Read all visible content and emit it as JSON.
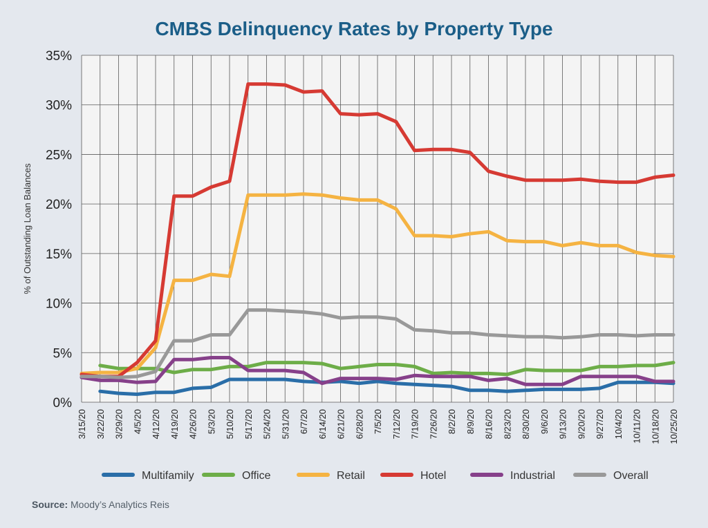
{
  "chart_data": {
    "type": "line",
    "title": "CMBS Delinquency Rates by Property Type",
    "ylabel": "% of Outstanding Loan Balances",
    "xlabel": "",
    "ylim": [
      0,
      35
    ],
    "yticks": [
      "0%",
      "5%",
      "10%",
      "15%",
      "20%",
      "25%",
      "30%",
      "35%"
    ],
    "categories": [
      "3/15/20",
      "3/22/20",
      "3/29/20",
      "4/5/20",
      "4/12/20",
      "4/19/20",
      "4/26/20",
      "5/3/20",
      "5/10/20",
      "5/17/20",
      "5/24/20",
      "5/31/20",
      "6/7/20",
      "6/14/20",
      "6/21/20",
      "6/28/20",
      "7/5/20",
      "7/12/20",
      "7/19/20",
      "7/26/20",
      "8/2/20",
      "8/9/20",
      "8/16/20",
      "8/23/20",
      "8/30/20",
      "9/6/20",
      "9/13/20",
      "9/20/20",
      "9/27/20",
      "10/4/20",
      "10/11/20",
      "10/18/20",
      "10/25/20"
    ],
    "grid": true,
    "legend_position": "bottom",
    "series": [
      {
        "name": "Multifamily",
        "color": "#2a6ea8",
        "values": [
          null,
          1.1,
          0.9,
          0.8,
          1.0,
          1.0,
          1.4,
          1.5,
          2.3,
          2.3,
          2.3,
          2.3,
          2.1,
          2.0,
          2.1,
          1.9,
          2.1,
          1.9,
          1.8,
          1.7,
          1.6,
          1.2,
          1.2,
          1.1,
          1.2,
          1.3,
          1.3,
          1.3,
          1.4,
          2.0,
          2.0,
          2.0,
          1.9
        ]
      },
      {
        "name": "Office",
        "color": "#6dad48",
        "values": [
          null,
          3.7,
          3.4,
          3.4,
          3.4,
          3.0,
          3.3,
          3.3,
          3.6,
          3.6,
          4.0,
          4.0,
          4.0,
          3.9,
          3.4,
          3.6,
          3.8,
          3.8,
          3.6,
          2.9,
          3.0,
          2.9,
          2.9,
          2.8,
          3.3,
          3.2,
          3.2,
          3.2,
          3.6,
          3.6,
          3.7,
          3.7,
          4.0
        ]
      },
      {
        "name": "Retail",
        "color": "#f5b342",
        "values": [
          2.9,
          3.0,
          3.0,
          3.4,
          5.5,
          12.3,
          12.3,
          12.9,
          12.7,
          20.9,
          20.9,
          20.9,
          21.0,
          20.9,
          20.6,
          20.4,
          20.4,
          19.5,
          16.8,
          16.8,
          16.7,
          17.0,
          17.2,
          16.3,
          16.2,
          16.2,
          15.8,
          16.1,
          15.8,
          15.8,
          15.1,
          14.8,
          14.7
        ]
      },
      {
        "name": "Hotel",
        "color": "#d63a33",
        "values": [
          2.8,
          2.6,
          2.6,
          4.0,
          6.2,
          20.8,
          20.8,
          21.7,
          22.3,
          32.1,
          32.1,
          32.0,
          31.3,
          31.4,
          29.1,
          29.0,
          29.1,
          28.3,
          25.4,
          25.5,
          25.5,
          25.2,
          23.3,
          22.8,
          22.4,
          22.4,
          22.4,
          22.5,
          22.3,
          22.2,
          22.2,
          22.7,
          22.9
        ]
      },
      {
        "name": "Industrial",
        "color": "#86408a",
        "values": [
          2.5,
          2.2,
          2.2,
          2.0,
          2.1,
          4.3,
          4.3,
          4.5,
          4.5,
          3.2,
          3.2,
          3.2,
          3.0,
          1.9,
          2.4,
          2.4,
          2.4,
          2.3,
          2.7,
          2.6,
          2.6,
          2.6,
          2.2,
          2.4,
          1.8,
          1.8,
          1.8,
          2.6,
          2.6,
          2.6,
          2.6,
          2.1,
          2.1
        ]
      },
      {
        "name": "Overall",
        "color": "#999999",
        "values": [
          2.6,
          2.6,
          2.5,
          2.6,
          3.1,
          6.2,
          6.2,
          6.8,
          6.8,
          9.3,
          9.3,
          9.2,
          9.1,
          8.9,
          8.5,
          8.6,
          8.6,
          8.4,
          7.3,
          7.2,
          7.0,
          7.0,
          6.8,
          6.7,
          6.6,
          6.6,
          6.5,
          6.6,
          6.8,
          6.8,
          6.7,
          6.8,
          6.8
        ]
      }
    ]
  },
  "source": {
    "label": "Source:",
    "text": "Moody’s Analytics Reis"
  }
}
